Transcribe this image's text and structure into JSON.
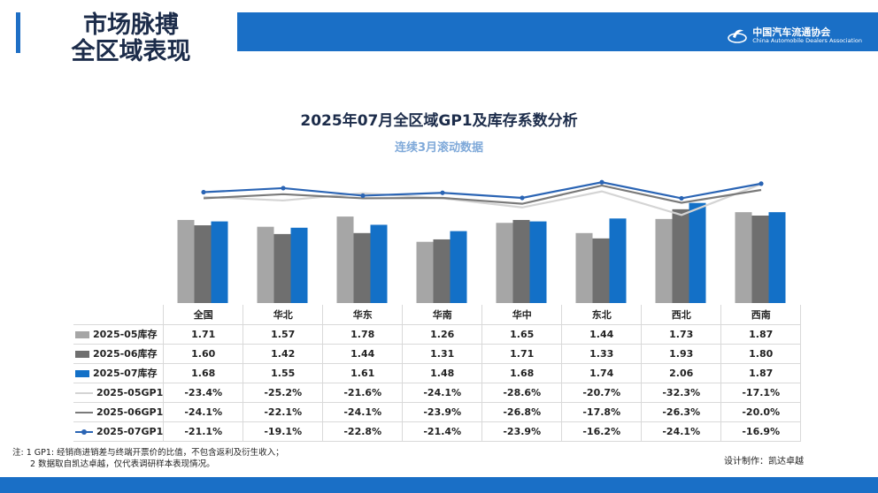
{
  "header": {
    "title_line1": "市场脉搏",
    "title_line2": "全区域表现",
    "logo_cn": "中国汽车流通协会",
    "logo_en": "China Automobile Dealers Association",
    "accent": "#1a6fc6"
  },
  "chart_data": {
    "type": "bar",
    "title": "2025年07月全区域GP1及库存系数分析",
    "subtitle": "连续3月滚动数据",
    "categories": [
      "全国",
      "华北",
      "华东",
      "华南",
      "华中",
      "东北",
      "西北",
      "西南"
    ],
    "series": [
      {
        "name": "2025-05库存",
        "kind": "bar",
        "color": "#a6a6a6",
        "values": [
          1.71,
          1.57,
          1.78,
          1.26,
          1.65,
          1.44,
          1.73,
          1.87
        ]
      },
      {
        "name": "2025-06库存",
        "kind": "bar",
        "color": "#6f6f6f",
        "values": [
          1.6,
          1.42,
          1.44,
          1.31,
          1.71,
          1.33,
          1.93,
          1.8
        ]
      },
      {
        "name": "2025-07库存",
        "kind": "bar",
        "color": "#1370c7",
        "values": [
          1.68,
          1.55,
          1.61,
          1.48,
          1.68,
          1.74,
          2.06,
          1.87
        ]
      },
      {
        "name": "2025-05GP1",
        "kind": "line",
        "color": "#d4d4d4",
        "values": [
          -23.4,
          -25.2,
          -21.6,
          -24.1,
          -28.6,
          -20.7,
          -32.3,
          -17.1
        ]
      },
      {
        "name": "2025-06GP1",
        "kind": "line",
        "color": "#7a7a7a",
        "values": [
          -24.1,
          -22.1,
          -24.1,
          -23.9,
          -26.8,
          -17.8,
          -26.3,
          -20.0
        ]
      },
      {
        "name": "2025-07GP1",
        "kind": "line",
        "marker": true,
        "color": "#2a64b4",
        "values": [
          -21.1,
          -19.1,
          -22.8,
          -21.4,
          -23.9,
          -16.2,
          -24.1,
          -16.9
        ]
      }
    ],
    "table_display": {
      "2025-05库存": [
        "1.71",
        "1.57",
        "1.78",
        "1.26",
        "1.65",
        "1.44",
        "1.73",
        "1.87"
      ],
      "2025-06库存": [
        "1.60",
        "1.42",
        "1.44",
        "1.31",
        "1.71",
        "1.33",
        "1.93",
        "1.80"
      ],
      "2025-07库存": [
        "1.68",
        "1.55",
        "1.61",
        "1.48",
        "1.68",
        "1.74",
        "2.06",
        "1.87"
      ],
      "2025-05GP1": [
        "-23.4%",
        "-25.2%",
        "-21.6%",
        "-24.1%",
        "-28.6%",
        "-20.7%",
        "-32.3%",
        "-17.1%"
      ],
      "2025-06GP1": [
        "-24.1%",
        "-22.1%",
        "-24.1%",
        "-23.9%",
        "-26.8%",
        "-17.8%",
        "-26.3%",
        "-20.0%"
      ],
      "2025-07GP1": [
        "-21.1%",
        "-19.1%",
        "-22.8%",
        "-21.4%",
        "-23.9%",
        "-16.2%",
        "-24.1%",
        "-16.9%"
      ]
    }
  },
  "notes": {
    "line1": "注: 1 GP1: 经销商进销差与终端开票价的比值，不包含返利及衍生收入；",
    "line2": "2 数据取自凯达卓越，仅代表调研样本表现情况。",
    "designer": "设计制作：凯达卓越"
  }
}
